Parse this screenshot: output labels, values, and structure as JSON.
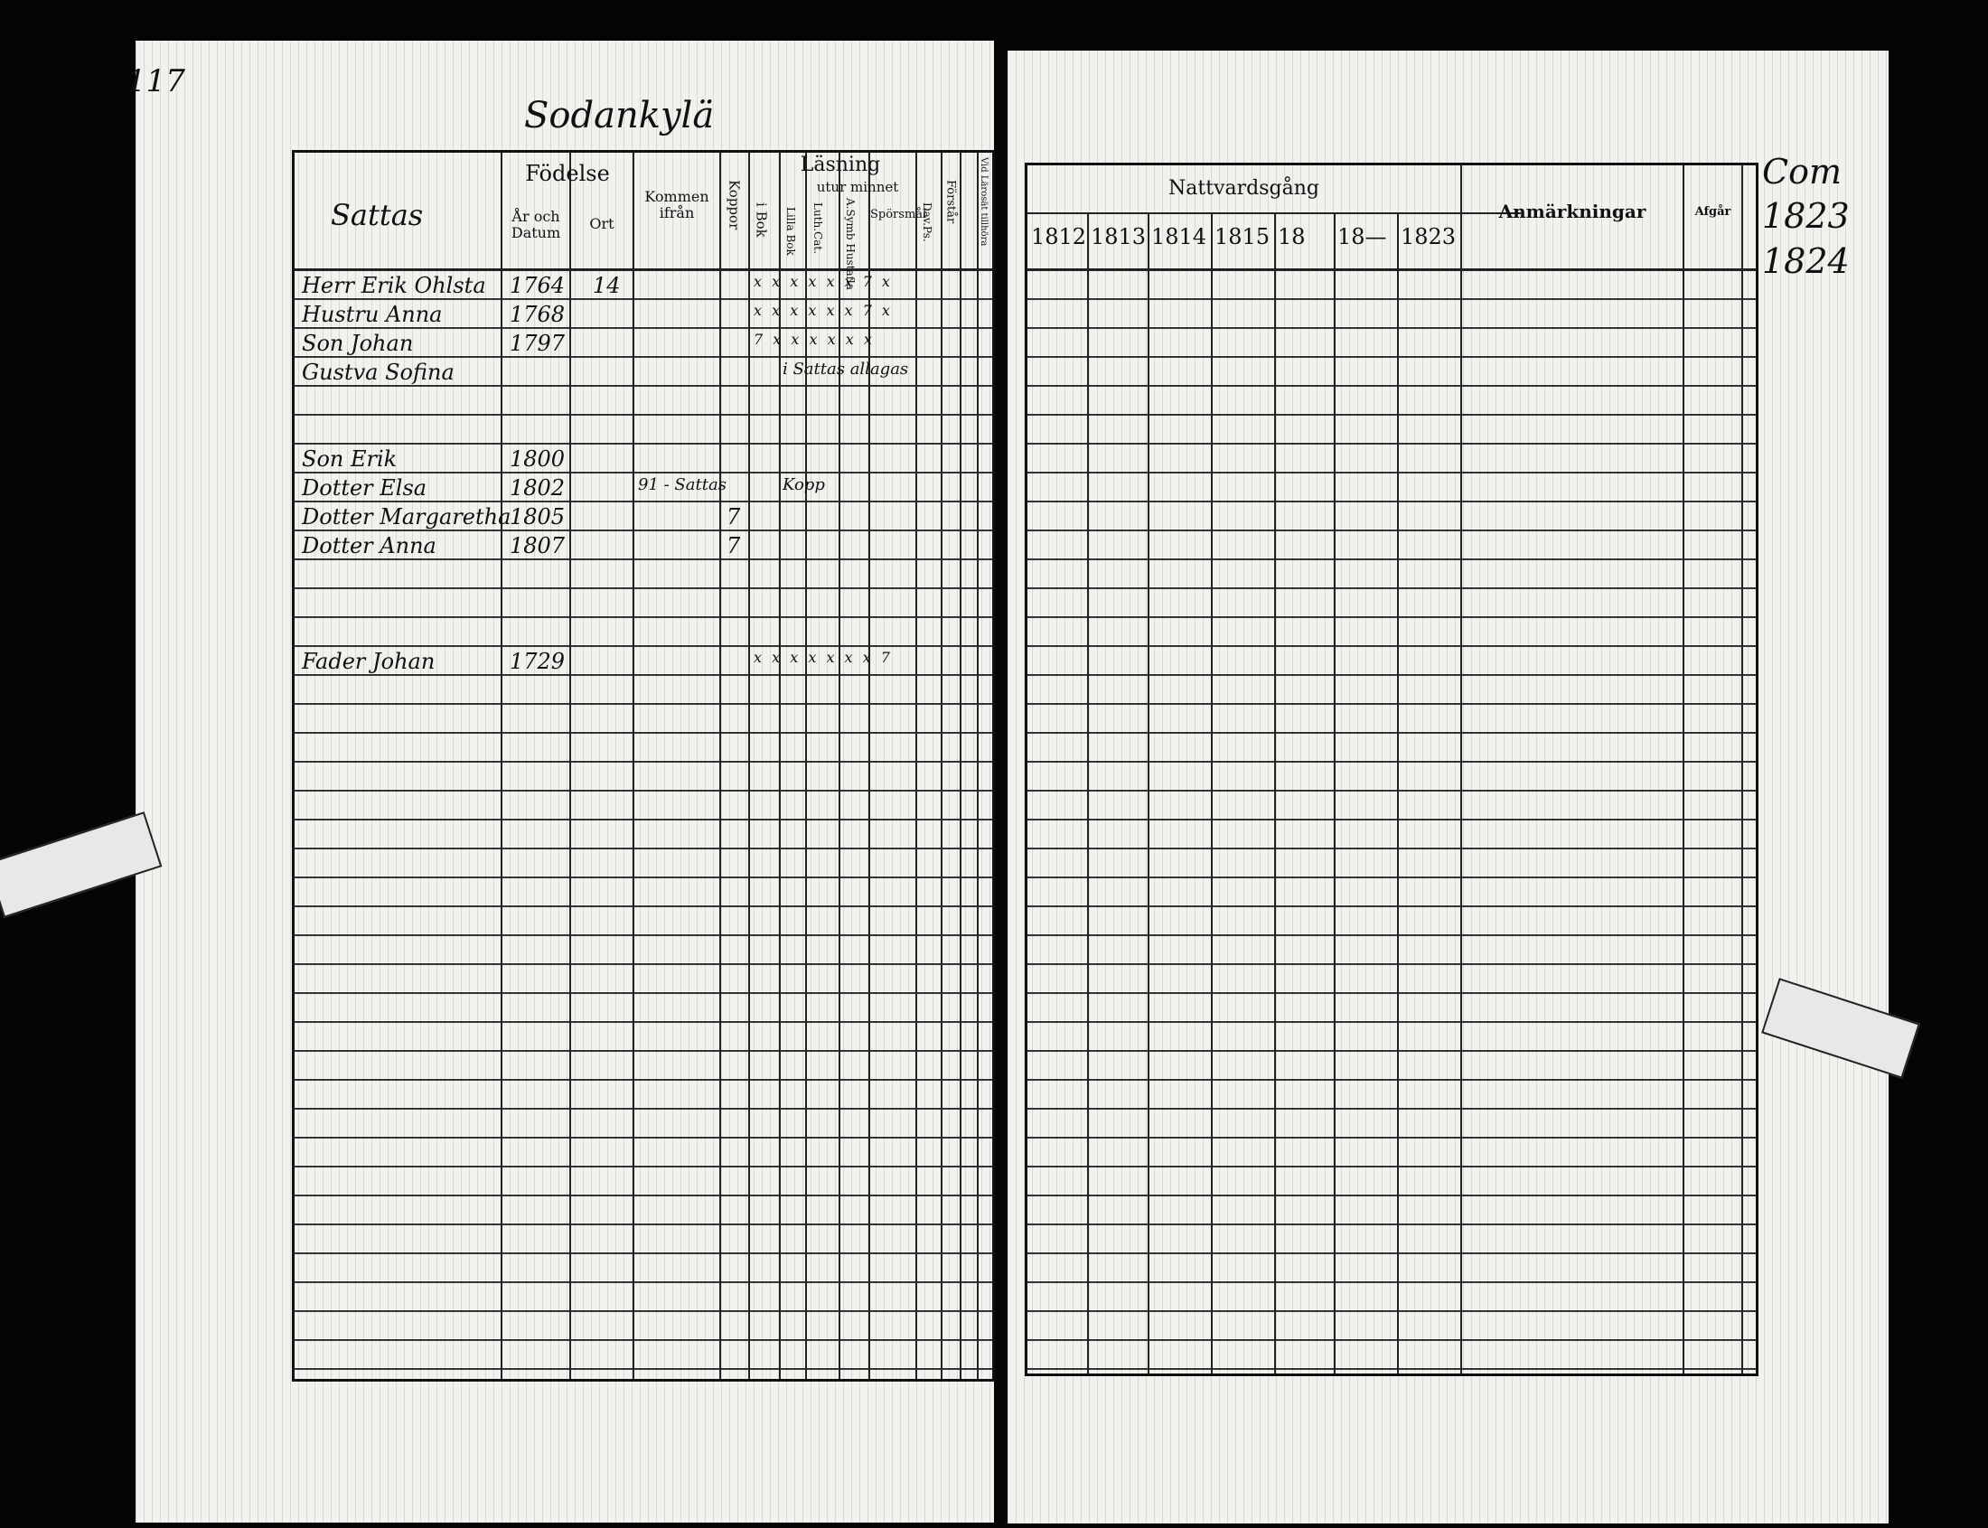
{
  "left_page": {
    "page_number": "117",
    "parish": "Sodankylä",
    "headers": {
      "name": "Sattas",
      "birth": "Födelse",
      "birth_year": "År och Datum",
      "birth_place": "Ort",
      "came_from": "Kommen ifrån",
      "smallpox": "Koppor",
      "reading": "Läsning",
      "by_heart": "utur minnet",
      "in_book": "i Bok",
      "small_cat": "Lilla Bok",
      "luth_cat": "Luth.Cat.",
      "hudstafla": "A.Symb Hustafla",
      "questions": "Spörsmål",
      "dav_ps": "Dav.Ps.",
      "understanding": "Förstår",
      "last_column": "Vid Lärosät tillhöra"
    },
    "entries": [
      {
        "name": "Herr Erik Ohlsta",
        "year": "1764",
        "place": "14",
        "marks": "x x x x x x 7 x"
      },
      {
        "name": "Hustru Anna",
        "year": "1768",
        "marks": "x x x x x x 7 x"
      },
      {
        "name": "Son Johan",
        "year": "1797",
        "marks": "7 x x x x x x"
      },
      {
        "name": "Gustva Sofina",
        "note": "i Sattas allagas"
      },
      {
        "name": "Son Erik",
        "year": "1800"
      },
      {
        "name": "Dotter Elsa",
        "year": "1802",
        "came_from": "91 - Sattas",
        "note": "Kopp"
      },
      {
        "name": "Dotter Margaretha",
        "year": "1805",
        "smallpox": "7"
      },
      {
        "name": "Dotter Anna",
        "year": "1807",
        "smallpox": "7"
      },
      {
        "name": "Fader Johan",
        "year": "1729",
        "marks": "x x x x x x x 7"
      }
    ]
  },
  "right_page": {
    "headers": {
      "communion": "Nattvardsgång",
      "years": [
        "1812",
        "1813",
        "1814",
        "1815",
        "18",
        "18—",
        "1823"
      ],
      "remarks": "Anmärkningar",
      "departure": "Afgår"
    },
    "margin_note": "Com 1823 1824"
  }
}
